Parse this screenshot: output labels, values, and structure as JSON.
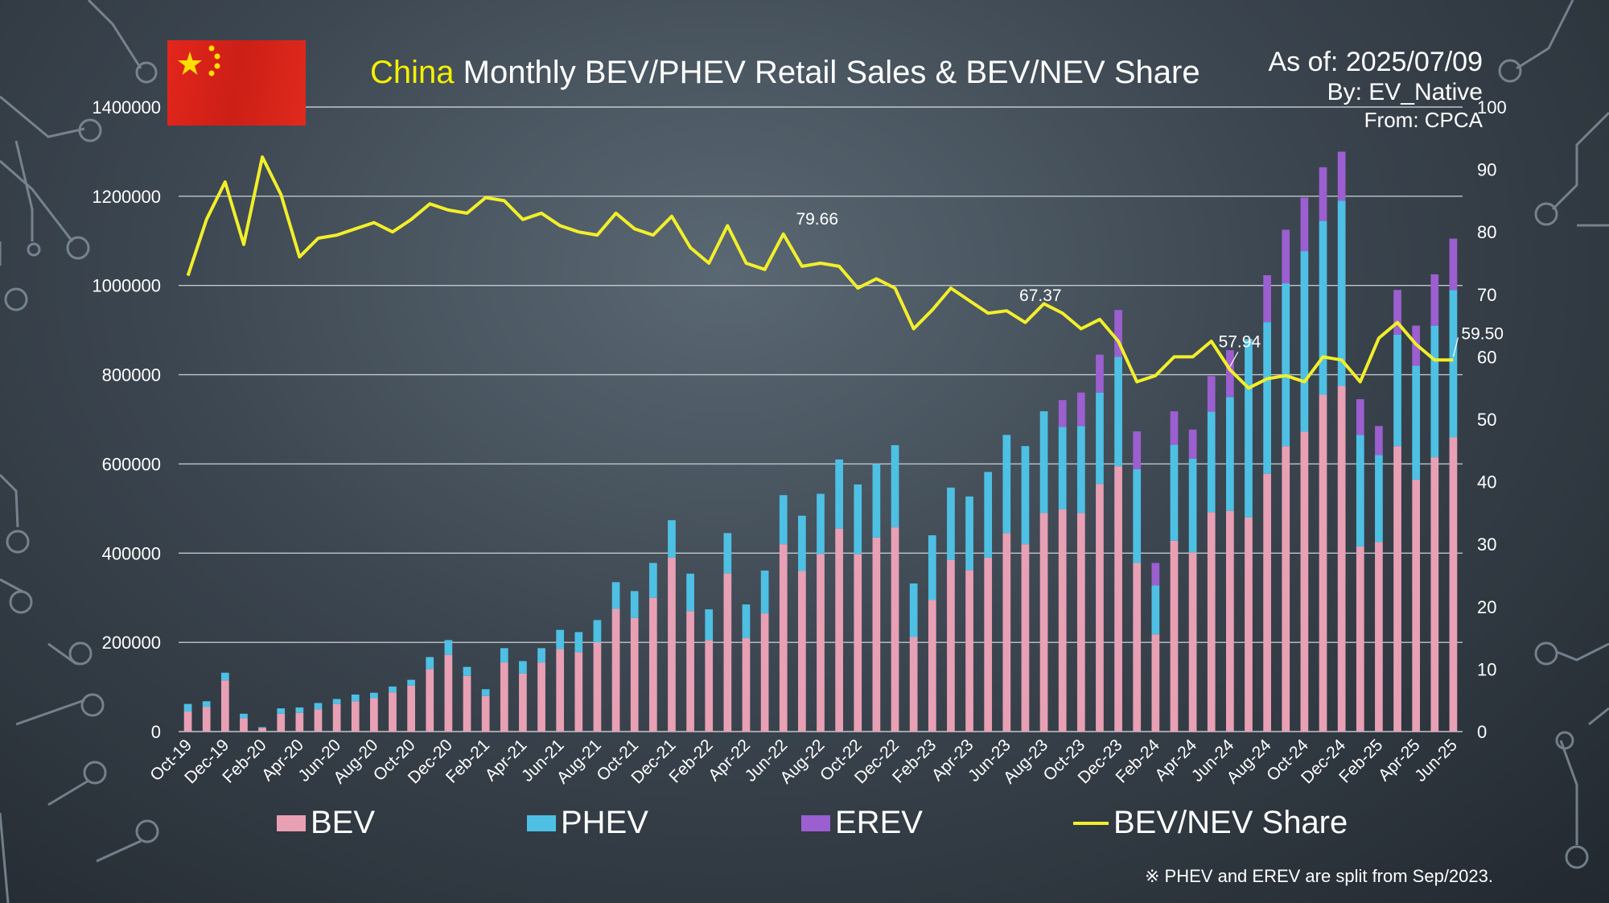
{
  "header": {
    "title_highlight": "China",
    "title_rest": " Monthly BEV/PHEV Retail Sales & BEV/NEV Share",
    "as_of": "As of: 2025/07/09",
    "by": "By: EV_Native",
    "from": "From: CPCA"
  },
  "footnote": "※ PHEV and EREV are split from Sep/2023.",
  "colors": {
    "bev": "#e8a0b4",
    "phev": "#4ec0e4",
    "erev": "#9b5fd0",
    "share_line": "#f2ef2a",
    "highlight_text": "#f5f000",
    "grid": "#d8dde2"
  },
  "legend": {
    "bev": "BEV",
    "phev": "PHEV",
    "erev": "EREV",
    "share": "BEV/NEV Share"
  },
  "chart_data": {
    "type": "bar",
    "title": "China Monthly BEV/PHEV Retail Sales & BEV/NEV Share",
    "y_ticks": [
      "0",
      "200000",
      "400000",
      "600000",
      "800000",
      "1000000",
      "1200000",
      "1400000"
    ],
    "ylim": [
      0,
      1400000
    ],
    "y2_ticks": [
      "0",
      "10",
      "20",
      "30",
      "40",
      "50",
      "60",
      "70",
      "80",
      "90",
      "100"
    ],
    "y2lim": [
      0,
      100
    ],
    "grid": true,
    "legend_position": "bottom",
    "tick_labels": [
      "Oct-19",
      "Dec-19",
      "Feb-20",
      "Apr-20",
      "Jun-20",
      "Aug-20",
      "Oct-20",
      "Dec-20",
      "Feb-21",
      "Apr-21",
      "Jun-21",
      "Aug-21",
      "Oct-21",
      "Dec-21",
      "Feb-22",
      "Apr-22",
      "Jun-22",
      "Aug-22",
      "Oct-22",
      "Dec-22",
      "Feb-23",
      "Apr-23",
      "Jun-23",
      "Aug-23",
      "Oct-23",
      "Dec-23",
      "Feb-24",
      "Apr-24",
      "Jun-24",
      "Aug-24",
      "Oct-24",
      "Dec-24",
      "Feb-25",
      "Apr-25",
      "Jun-25"
    ],
    "categories": [
      "Oct-19",
      "Nov-19",
      "Dec-19",
      "Jan-20",
      "Feb-20",
      "Mar-20",
      "Apr-20",
      "May-20",
      "Jun-20",
      "Jul-20",
      "Aug-20",
      "Sep-20",
      "Oct-20",
      "Nov-20",
      "Dec-20",
      "Jan-21",
      "Feb-21",
      "Mar-21",
      "Apr-21",
      "May-21",
      "Jun-21",
      "Jul-21",
      "Aug-21",
      "Sep-21",
      "Oct-21",
      "Nov-21",
      "Dec-21",
      "Jan-22",
      "Feb-22",
      "Mar-22",
      "Apr-22",
      "May-22",
      "Jun-22",
      "Jul-22",
      "Aug-22",
      "Sep-22",
      "Oct-22",
      "Nov-22",
      "Dec-22",
      "Jan-23",
      "Feb-23",
      "Mar-23",
      "Apr-23",
      "May-23",
      "Jun-23",
      "Jul-23",
      "Aug-23",
      "Sep-23",
      "Oct-23",
      "Nov-23",
      "Dec-23",
      "Jan-24",
      "Feb-24",
      "Mar-24",
      "Apr-24",
      "May-24",
      "Jun-24",
      "Jul-24",
      "Aug-24",
      "Sep-24",
      "Oct-24",
      "Nov-24",
      "Dec-24",
      "Jan-25",
      "Feb-25",
      "Mar-25",
      "Apr-25",
      "May-25",
      "Jun-25"
    ],
    "series": [
      {
        "name": "BEV",
        "kind": "bar",
        "values": [
          45000,
          55000,
          115000,
          30000,
          8000,
          40000,
          42000,
          50000,
          62000,
          68000,
          75000,
          88000,
          103000,
          140000,
          172000,
          125000,
          80000,
          155000,
          130000,
          155000,
          185000,
          178000,
          200000,
          275000,
          255000,
          300000,
          390000,
          270000,
          205000,
          355000,
          210000,
          265000,
          420000,
          360000,
          398000,
          455000,
          398000,
          435000,
          458000,
          212000,
          295000,
          385000,
          362000,
          390000,
          445000,
          420000,
          490000,
          498000,
          490000,
          555000,
          595000,
          378000,
          218000,
          428000,
          402000,
          492000,
          495000,
          480000,
          578000,
          640000,
          672000,
          755000,
          775000,
          415000,
          425000,
          640000,
          565000,
          615000,
          660000
        ]
      },
      {
        "name": "PHEV",
        "kind": "bar",
        "values": [
          17000,
          13000,
          17000,
          10000,
          2000,
          12000,
          12000,
          14000,
          11000,
          15000,
          12000,
          13000,
          13000,
          27000,
          33000,
          20000,
          15000,
          32000,
          28000,
          32000,
          43000,
          45000,
          50000,
          60000,
          60000,
          78000,
          84000,
          84000,
          69000,
          90000,
          75000,
          96000,
          110000,
          124000,
          135000,
          155000,
          156000,
          165000,
          184000,
          120000,
          145000,
          162000,
          165000,
          192000,
          220000,
          220000,
          228000,
          185000,
          195000,
          205000,
          245000,
          210000,
          110000,
          215000,
          210000,
          225000,
          255000,
          400000,
          340000,
          365000,
          405000,
          390000,
          415000,
          250000,
          195000,
          250000,
          255000,
          295000,
          330000
        ]
      },
      {
        "name": "EREV",
        "kind": "bar",
        "values": [
          0,
          0,
          0,
          0,
          0,
          0,
          0,
          0,
          0,
          0,
          0,
          0,
          0,
          0,
          0,
          0,
          0,
          0,
          0,
          0,
          0,
          0,
          0,
          0,
          0,
          0,
          0,
          0,
          0,
          0,
          0,
          0,
          0,
          0,
          0,
          0,
          0,
          0,
          0,
          0,
          0,
          0,
          0,
          0,
          0,
          0,
          0,
          60000,
          75000,
          85000,
          105000,
          85000,
          50000,
          75000,
          65000,
          80000,
          105000,
          0,
          105000,
          120000,
          120000,
          120000,
          110000,
          80000,
          65000,
          100000,
          90000,
          115000,
          115000
        ]
      },
      {
        "name": "BEV/NEV Share",
        "kind": "line",
        "axis": "right",
        "values": [
          73,
          82,
          88,
          78,
          92,
          86,
          76,
          79,
          79.5,
          80.5,
          81.5,
          80,
          82,
          84.5,
          83.5,
          83,
          85.5,
          85,
          82,
          83,
          81,
          80,
          79.5,
          83,
          80.5,
          79.5,
          82.5,
          77.5,
          75,
          81,
          75,
          74,
          79.66,
          74.5,
          75,
          74.5,
          71,
          72.5,
          71,
          64.5,
          67.5,
          71,
          69,
          67,
          67.37,
          65.5,
          68.5,
          67,
          64.5,
          66,
          62.5,
          56,
          57,
          60,
          60,
          62.5,
          57.94,
          55,
          56.5,
          57,
          56,
          60,
          59.5,
          56,
          63,
          65.5,
          62,
          59.5,
          59.5
        ]
      }
    ],
    "annotations": [
      {
        "index": 32,
        "text": "79.66"
      },
      {
        "index": 44,
        "text": "67.37"
      },
      {
        "index": 56,
        "text": "57.94"
      },
      {
        "index": 68,
        "text": "59.50"
      }
    ]
  }
}
